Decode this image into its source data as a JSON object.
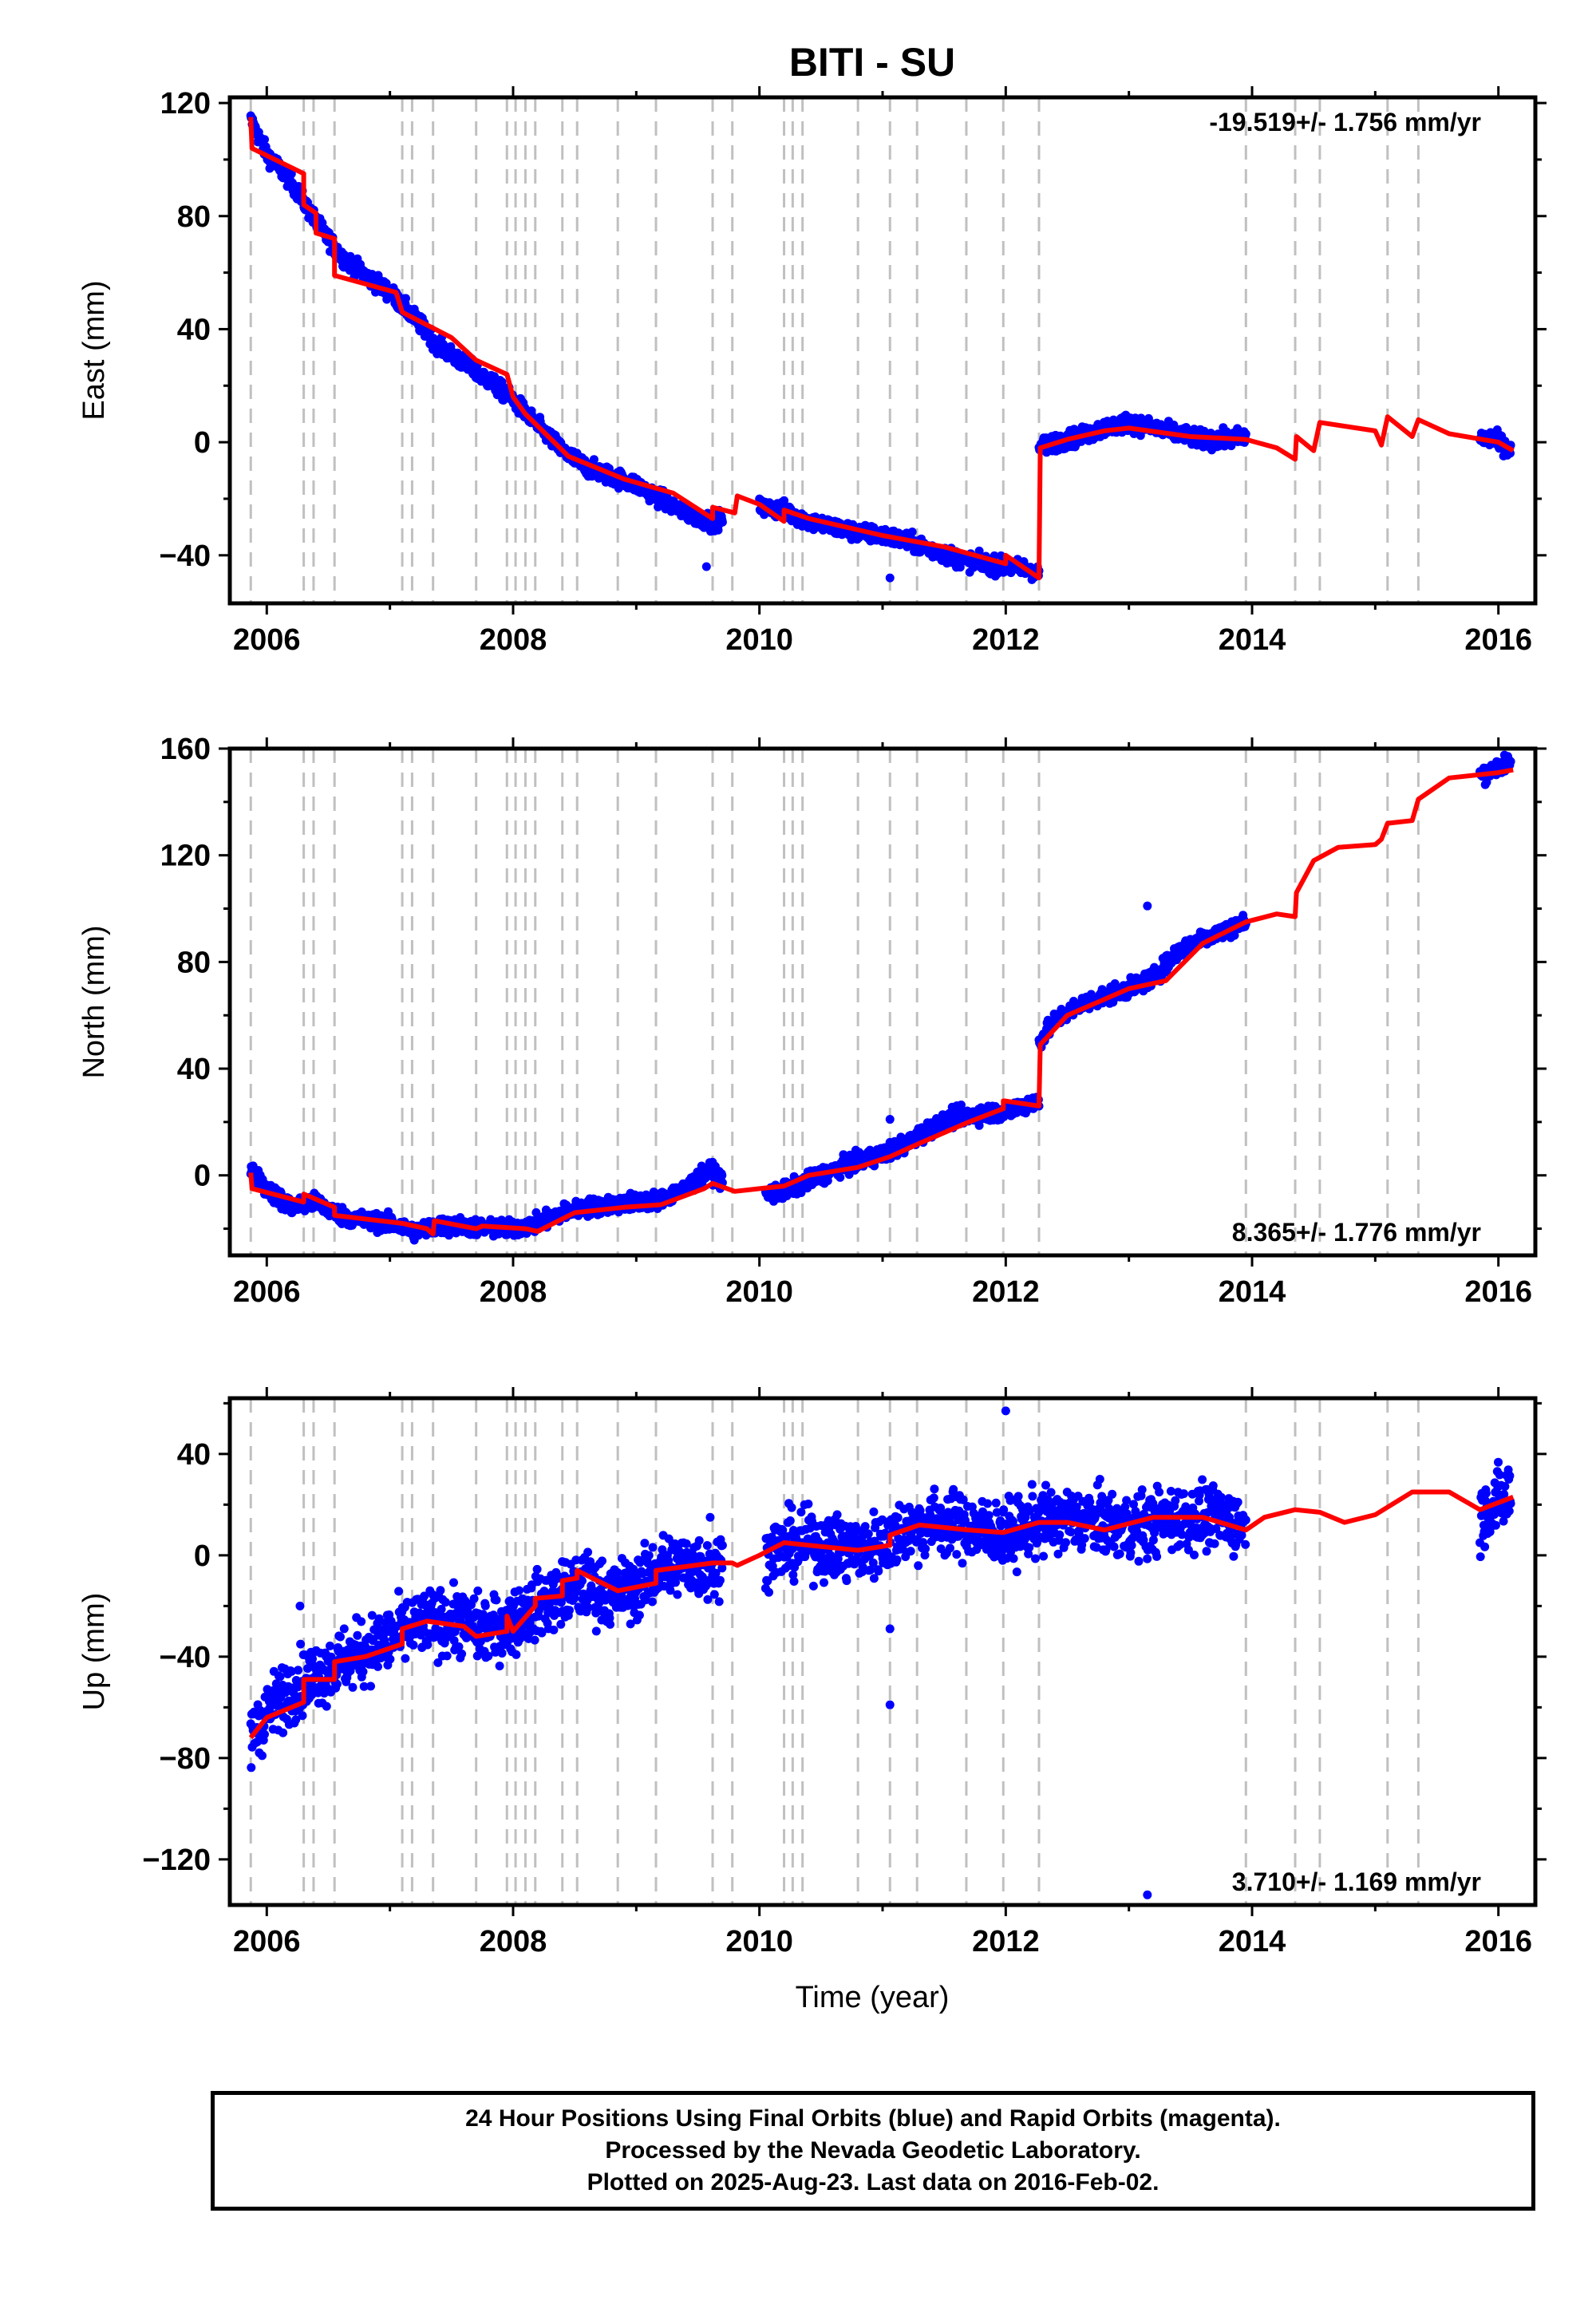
{
  "title": "BITI - SU",
  "xlabel": "Time (year)",
  "footer": {
    "line1": "24 Hour Positions Using Final Orbits (blue) and Rapid Orbits (magenta).",
    "line2": "Processed by the Nevada Geodetic Laboratory.",
    "line3": "Plotted on 2025-Aug-23. Last data on 2016-Feb-02."
  },
  "colors": {
    "data": "#0000ff",
    "model": "#ff0000",
    "event_lines": "#c0c0c0",
    "frame": "#000000"
  },
  "chart_data": [
    {
      "type": "scatter",
      "ylabel": "East (mm)",
      "rate_label": "-19.519+/- 1.756 mm/yr",
      "xlim": [
        2005.7,
        2016.3
      ],
      "ylim": [
        -57,
        122
      ],
      "xticks": [
        2006,
        2008,
        2010,
        2012,
        2014,
        2016
      ],
      "yticks": [
        -40,
        0,
        40,
        80,
        120
      ],
      "data_segments": [
        {
          "x": [
            2005.87,
            2006.0,
            2006.2,
            2006.4,
            2006.6,
            2006.8,
            2007.0,
            2007.2,
            2007.4,
            2007.6,
            2007.8,
            2008.0,
            2008.2,
            2008.4,
            2008.6,
            2008.8,
            2009.0,
            2009.2,
            2009.4,
            2009.6,
            2009.7
          ],
          "y": [
            114,
            102,
            92,
            78,
            66,
            59,
            53,
            44,
            34,
            28,
            22,
            15,
            6,
            -3,
            -9,
            -12,
            -15,
            -20,
            -25,
            -28,
            -27
          ]
        },
        {
          "x": [
            2010.0,
            2010.2,
            2010.4,
            2010.6,
            2010.8,
            2011.0,
            2011.2,
            2011.4,
            2011.6,
            2011.8,
            2012.0,
            2012.2,
            2012.27
          ],
          "y": [
            -23,
            -24,
            -28,
            -30,
            -32,
            -33,
            -35,
            -38,
            -41,
            -43,
            -44,
            -45,
            -47
          ]
        },
        {
          "x": [
            2012.27,
            2012.4,
            2012.6,
            2012.8,
            2013.0,
            2013.2,
            2013.4,
            2013.6,
            2013.8,
            2013.95
          ],
          "y": [
            -2,
            0,
            2,
            5,
            7,
            5,
            3,
            1,
            1,
            2
          ]
        },
        {
          "x": [
            2015.85,
            2015.95,
            2016.05,
            2016.1
          ],
          "y": [
            2,
            1,
            -1,
            -3
          ]
        }
      ],
      "outliers": [
        {
          "x": 2009.57,
          "y": -44
        },
        {
          "x": 2011.06,
          "y": -48
        }
      ],
      "model": {
        "x": [
          2005.87,
          2005.88,
          2006.3,
          2006.3,
          2006.4,
          2006.4,
          2006.55,
          2006.55,
          2007.05,
          2007.1,
          2007.5,
          2007.7,
          2007.95,
          2008.0,
          2008.1,
          2008.45,
          2008.9,
          2009.3,
          2009.62,
          2009.62,
          2009.8,
          2009.82,
          2010.0,
          2010.2,
          2010.2,
          2010.4,
          2011.0,
          2011.5,
          2012.0,
          2012.0,
          2012.27,
          2012.28,
          2012.5,
          2012.8,
          2013.0,
          2013.5,
          2013.95,
          2014.2,
          2014.35,
          2014.36,
          2014.5,
          2014.55,
          2015.0,
          2015.05,
          2015.1,
          2015.3,
          2015.35,
          2015.6,
          2016.0,
          2016.12
        ],
        "y": [
          115,
          104,
          95,
          84,
          81,
          74,
          72,
          59,
          53,
          46,
          37,
          29,
          24,
          16,
          10,
          -5,
          -13,
          -18,
          -27,
          -23,
          -25,
          -19,
          -22,
          -28,
          -24,
          -27,
          -33,
          -37,
          -43,
          -40,
          -48,
          -2,
          1,
          4,
          5,
          2,
          1,
          -2,
          -6,
          2,
          -3,
          7,
          4,
          -1,
          9,
          2,
          8,
          3,
          0,
          -3
        ]
      },
      "events": [
        2005.87,
        2006.3,
        2006.38,
        2006.55,
        2007.1,
        2007.18,
        2007.35,
        2007.7,
        2007.95,
        2008.02,
        2008.1,
        2008.18,
        2008.4,
        2008.52,
        2008.85,
        2009.16,
        2009.62,
        2009.78,
        2010.2,
        2010.27,
        2010.35,
        2010.8,
        2011.06,
        2011.28,
        2011.68,
        2011.98,
        2012.27,
        2013.95,
        2014.35,
        2014.55,
        2015.1,
        2015.35
      ]
    },
    {
      "type": "scatter",
      "ylabel": "North (mm)",
      "rate_label": "8.365+/- 1.776 mm/yr",
      "xlim": [
        2005.7,
        2016.3
      ],
      "ylim": [
        -30,
        160
      ],
      "xticks": [
        2006,
        2008,
        2010,
        2012,
        2014,
        2016
      ],
      "yticks": [
        0,
        40,
        80,
        120,
        160
      ],
      "data_segments": [
        {
          "x": [
            2005.87,
            2006.0,
            2006.2,
            2006.4,
            2006.6,
            2006.8,
            2007.0,
            2007.2,
            2007.4,
            2007.6,
            2007.8,
            2008.0,
            2008.2,
            2008.4,
            2008.6,
            2008.8,
            2009.0,
            2009.2,
            2009.4,
            2009.6,
            2009.7
          ],
          "y": [
            2,
            -5,
            -12,
            -10,
            -15,
            -17,
            -18,
            -21,
            -19,
            -19,
            -20,
            -20,
            -18,
            -14,
            -12,
            -11,
            -10,
            -9,
            -5,
            2,
            -2
          ]
        },
        {
          "x": [
            2010.05,
            2010.2,
            2010.4,
            2010.6,
            2010.8,
            2011.0,
            2011.2,
            2011.4,
            2011.6,
            2011.8,
            2012.0,
            2012.2,
            2012.27
          ],
          "y": [
            -7,
            -6,
            -2,
            2,
            5,
            8,
            12,
            18,
            22,
            23,
            24,
            27,
            28
          ]
        },
        {
          "x": [
            2012.27,
            2012.4,
            2012.6,
            2012.8,
            2013.0,
            2013.2,
            2013.4,
            2013.6,
            2013.8,
            2013.95
          ],
          "y": [
            50,
            58,
            64,
            67,
            70,
            74,
            84,
            89,
            92,
            95
          ]
        },
        {
          "x": [
            2015.85,
            2015.95,
            2016.05,
            2016.1
          ],
          "y": [
            150,
            152,
            154,
            155
          ]
        }
      ],
      "outliers": [
        {
          "x": 2013.15,
          "y": 101
        },
        {
          "x": 2011.06,
          "y": 21
        }
      ],
      "model": {
        "x": [
          2005.87,
          2005.88,
          2006.3,
          2006.3,
          2006.55,
          2006.55,
          2007.1,
          2007.3,
          2007.35,
          2007.36,
          2007.7,
          2007.75,
          2008.1,
          2008.2,
          2008.5,
          2008.9,
          2009.2,
          2009.55,
          2009.62,
          2009.8,
          2010.0,
          2010.2,
          2010.4,
          2010.8,
          2011.06,
          2011.3,
          2011.7,
          2011.98,
          2011.98,
          2012.27,
          2012.28,
          2012.5,
          2012.8,
          2013.0,
          2013.3,
          2013.6,
          2013.95,
          2014.2,
          2014.35,
          2014.36,
          2014.5,
          2014.7,
          2015.0,
          2015.05,
          2015.1,
          2015.3,
          2015.35,
          2015.6,
          2016.0,
          2016.12
        ],
        "y": [
          1,
          -5,
          -10,
          -7,
          -12,
          -15,
          -18,
          -20,
          -22,
          -17,
          -20,
          -19,
          -20,
          -21,
          -14,
          -12,
          -11,
          -5,
          -3,
          -6,
          -5,
          -4,
          0,
          3,
          7,
          12,
          20,
          25,
          28,
          26,
          49,
          60,
          66,
          70,
          73,
          87,
          95,
          98,
          97,
          106,
          118,
          123,
          124,
          126,
          132,
          133,
          141,
          149,
          151,
          152
        ]
      },
      "events": [
        2005.87,
        2006.3,
        2006.38,
        2006.55,
        2007.1,
        2007.18,
        2007.35,
        2007.7,
        2007.95,
        2008.02,
        2008.1,
        2008.18,
        2008.4,
        2008.52,
        2008.85,
        2009.16,
        2009.62,
        2009.78,
        2010.2,
        2010.27,
        2010.35,
        2010.8,
        2011.06,
        2011.28,
        2011.68,
        2011.98,
        2012.27,
        2013.95,
        2014.35,
        2014.55,
        2015.1,
        2015.35
      ]
    },
    {
      "type": "scatter",
      "ylabel": "Up (mm)",
      "rate_label": "3.710+/- 1.169 mm/yr",
      "xlim": [
        2005.7,
        2016.3
      ],
      "ylim": [
        -138,
        62
      ],
      "xticks": [
        2006,
        2008,
        2010,
        2012,
        2014,
        2016
      ],
      "yticks": [
        -120,
        -80,
        -40,
        0,
        40
      ],
      "data_segments": [
        {
          "x": [
            2005.87,
            2006.0,
            2006.2,
            2006.4,
            2006.6,
            2006.8,
            2007.0,
            2007.2,
            2007.4,
            2007.6,
            2007.8,
            2008.0,
            2008.2,
            2008.4,
            2008.6,
            2008.8,
            2009.0,
            2009.2,
            2009.4,
            2009.6,
            2009.7
          ],
          "y": [
            -72,
            -62,
            -52,
            -47,
            -42,
            -38,
            -33,
            -28,
            -26,
            -27,
            -30,
            -26,
            -20,
            -15,
            -12,
            -16,
            -12,
            -5,
            -3,
            -5,
            -4
          ]
        },
        {
          "x": [
            2010.05,
            2010.2,
            2010.4,
            2010.6,
            2010.8,
            2011.0,
            2011.2,
            2011.4,
            2011.6,
            2011.8,
            2012.0,
            2012.2,
            2012.4,
            2012.6,
            2012.8,
            2013.0,
            2013.2,
            2013.4,
            2013.6,
            2013.8,
            2013.95
          ],
          "y": [
            2,
            3,
            5,
            3,
            2,
            5,
            10,
            13,
            12,
            10,
            8,
            12,
            14,
            14,
            13,
            11,
            13,
            15,
            15,
            14,
            12
          ]
        },
        {
          "x": [
            2015.85,
            2015.95,
            2016.05,
            2016.1
          ],
          "y": [
            15,
            20,
            22,
            25
          ]
        }
      ],
      "outliers": [
        {
          "x": 2011.06,
          "y": -59
        },
        {
          "x": 2011.06,
          "y": -29
        },
        {
          "x": 2012.0,
          "y": 57
        },
        {
          "x": 2013.15,
          "y": -134
        },
        {
          "x": 2006.27,
          "y": -20
        },
        {
          "x": 2009.6,
          "y": 15
        }
      ],
      "model": {
        "x": [
          2005.87,
          2006.0,
          2006.3,
          2006.3,
          2006.55,
          2006.55,
          2006.8,
          2007.1,
          2007.1,
          2007.3,
          2007.6,
          2007.7,
          2007.95,
          2007.95,
          2008.0,
          2008.18,
          2008.18,
          2008.4,
          2008.4,
          2008.52,
          2008.52,
          2008.85,
          2009.16,
          2009.16,
          2009.62,
          2009.78,
          2009.82,
          2010.0,
          2010.2,
          2010.4,
          2010.8,
          2011.06,
          2011.06,
          2011.3,
          2011.7,
          2011.98,
          2012.27,
          2012.5,
          2012.8,
          2013.2,
          2013.6,
          2013.95,
          2014.1,
          2014.35,
          2014.55,
          2014.75,
          2015.0,
          2015.3,
          2015.6,
          2015.85,
          2016.12
        ],
        "y": [
          -72,
          -64,
          -58,
          -49,
          -49,
          -42,
          -40,
          -35,
          -29,
          -26,
          -28,
          -32,
          -30,
          -24,
          -30,
          -20,
          -17,
          -16,
          -10,
          -9,
          -6,
          -14,
          -11,
          -6,
          -3,
          -3,
          -4,
          0,
          5,
          4,
          2,
          4,
          8,
          12,
          10,
          9,
          13,
          13,
          10,
          15,
          15,
          10,
          15,
          18,
          17,
          13,
          16,
          25,
          25,
          18,
          23
        ]
      },
      "events": [
        2005.87,
        2006.3,
        2006.38,
        2006.55,
        2007.1,
        2007.18,
        2007.35,
        2007.7,
        2007.95,
        2008.02,
        2008.1,
        2008.18,
        2008.4,
        2008.52,
        2008.85,
        2009.16,
        2009.62,
        2009.78,
        2010.2,
        2010.27,
        2010.35,
        2010.8,
        2011.06,
        2011.28,
        2011.68,
        2011.98,
        2012.27,
        2013.95,
        2014.35,
        2014.55,
        2015.1,
        2015.35
      ]
    }
  ]
}
